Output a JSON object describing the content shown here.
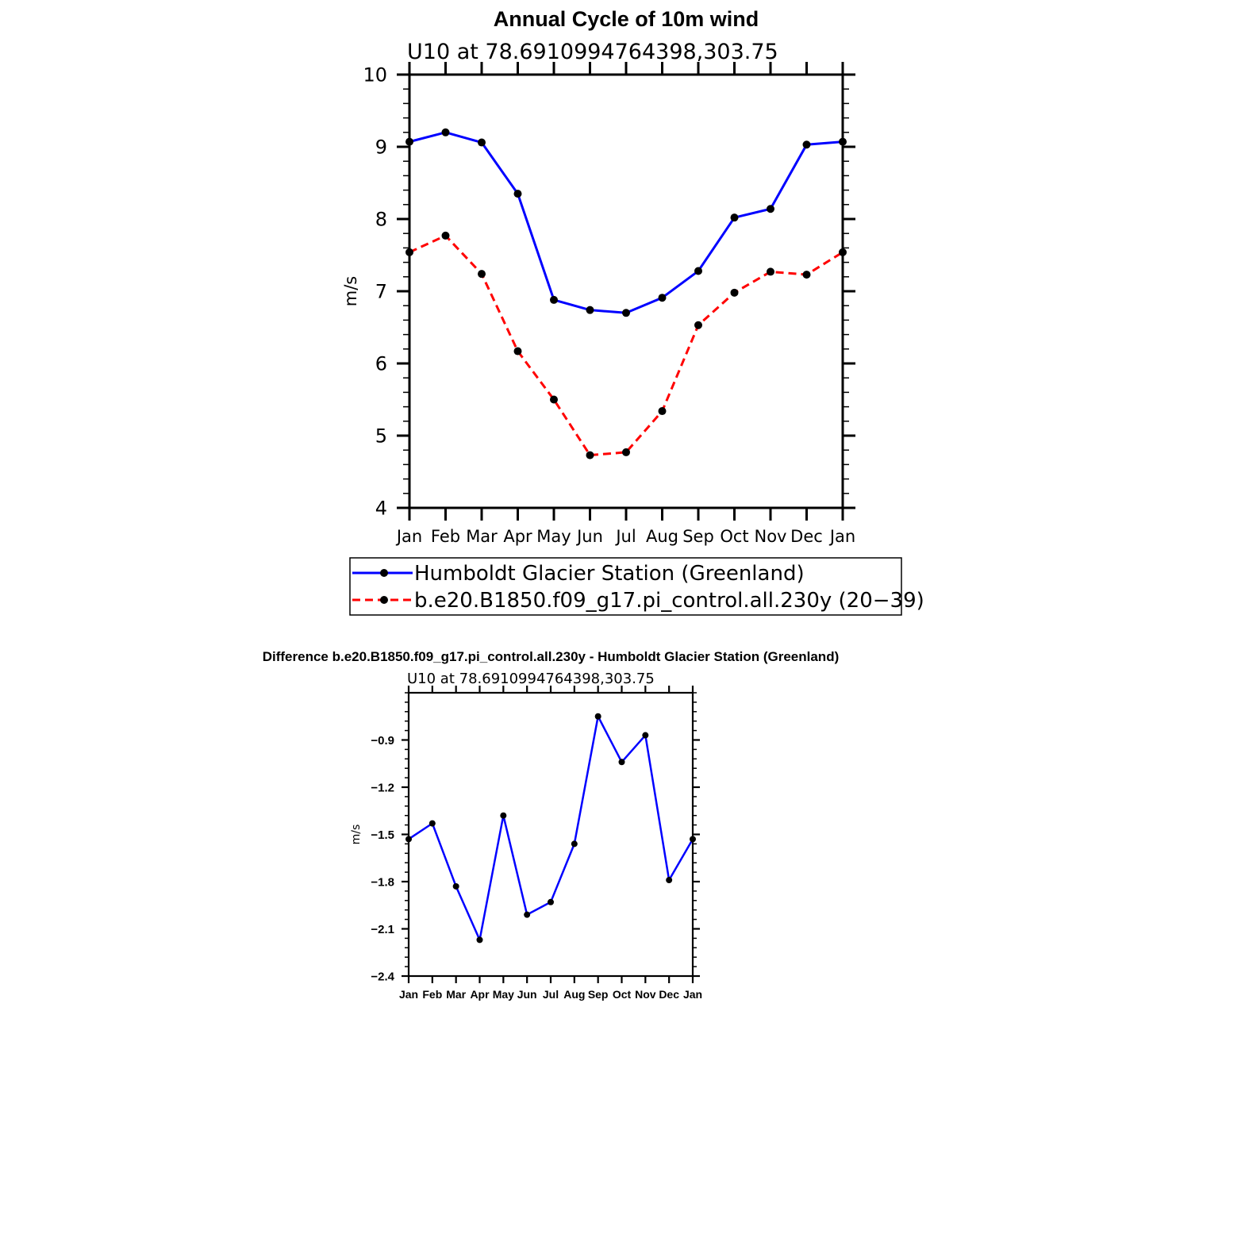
{
  "chart_data": [
    {
      "type": "line",
      "title": "Annual Cycle of 10m wind",
      "subtitle": "U10 at 78.6910994764398,303.75",
      "ylabel": "m/s",
      "xlabel": "",
      "categories": [
        "Jan",
        "Feb",
        "Mar",
        "Apr",
        "May",
        "Jun",
        "Jul",
        "Aug",
        "Sep",
        "Oct",
        "Nov",
        "Dec",
        "Jan"
      ],
      "ylim": [
        4,
        10
      ],
      "yticks": [
        4,
        5,
        6,
        7,
        8,
        9,
        10
      ],
      "ytick_labels": [
        "4",
        "5",
        "6",
        "7",
        "8",
        "9",
        "10"
      ],
      "grid": false,
      "legend_position": "below",
      "series": [
        {
          "name": "Humboldt Glacier Station (Greenland)",
          "color": "#0000ff",
          "dash": "solid",
          "values": [
            9.07,
            9.2,
            9.06,
            8.35,
            6.88,
            6.74,
            6.7,
            6.91,
            7.28,
            8.02,
            8.14,
            9.03,
            9.07
          ]
        },
        {
          "name": "b.e20.B1850.f09_g17.pi_control.all.230y (20−39)",
          "color": "#ff0000",
          "dash": "dashed",
          "values": [
            7.54,
            7.77,
            7.24,
            6.17,
            5.5,
            4.73,
            4.77,
            5.34,
            6.53,
            6.98,
            7.27,
            7.23,
            7.54
          ]
        }
      ]
    },
    {
      "type": "line",
      "title": "Difference b.e20.B1850.f09_g17.pi_control.all.230y - Humboldt Glacier Station (Greenland)",
      "subtitle": "U10 at 78.6910994764398,303.75",
      "ylabel": "m/s",
      "xlabel": "",
      "categories": [
        "Jan",
        "Feb",
        "Mar",
        "Apr",
        "May",
        "Jun",
        "Jul",
        "Aug",
        "Sep",
        "Oct",
        "Nov",
        "Dec",
        "Jan"
      ],
      "ylim": [
        -2.4,
        -0.6
      ],
      "yticks": [
        -2.4,
        -2.1,
        -1.8,
        -1.5,
        -1.2,
        -0.9
      ],
      "ytick_labels": [
        "−2.4",
        "−2.1",
        "−1.8",
        "−1.5",
        "−1.2",
        "−0.9"
      ],
      "grid": false,
      "series": [
        {
          "color": "#0000ff",
          "dash": "solid",
          "values": [
            -1.53,
            -1.43,
            -1.83,
            -2.17,
            -1.38,
            -2.01,
            -1.93,
            -1.56,
            -0.75,
            -1.04,
            -0.87,
            -1.79,
            -1.53
          ]
        }
      ]
    }
  ]
}
